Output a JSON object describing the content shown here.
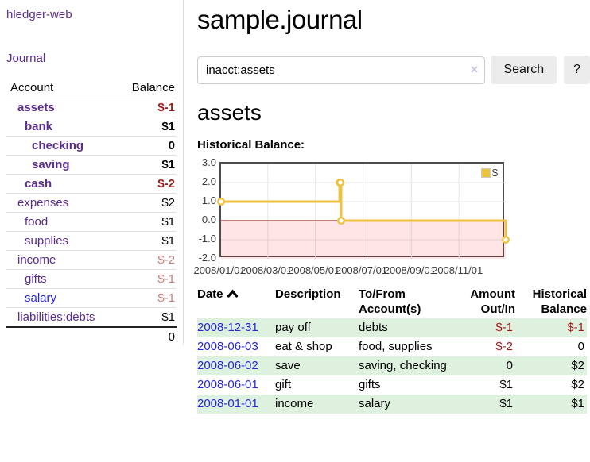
{
  "app": {
    "brand": "hledger-web"
  },
  "sidebar": {
    "journal_link": "Journal",
    "accounts_table": {
      "account_header": "Account",
      "balance_header": "Balance",
      "rows": [
        {
          "account": "assets",
          "balance": "$-1",
          "depth": 1,
          "bold": true,
          "amount_style": "neg-strong",
          "link_style": "purple"
        },
        {
          "account": "bank",
          "balance": "$1",
          "depth": 2,
          "bold": true,
          "amount_style": "normal",
          "link_style": "purple"
        },
        {
          "account": "checking",
          "balance": "0",
          "depth": 3,
          "bold": true,
          "amount_style": "normal",
          "link_style": "purple"
        },
        {
          "account": "saving",
          "balance": "$1",
          "depth": 3,
          "bold": true,
          "amount_style": "normal",
          "link_style": "purple"
        },
        {
          "account": "cash",
          "balance": "$-2",
          "depth": 2,
          "bold": true,
          "amount_style": "neg-strong",
          "link_style": "purple"
        },
        {
          "account": "expenses",
          "balance": "$2",
          "depth": 1,
          "bold": false,
          "amount_style": "normal",
          "link_style": "purple"
        },
        {
          "account": "food",
          "balance": "$1",
          "depth": 2,
          "bold": false,
          "amount_style": "normal",
          "link_style": "purple"
        },
        {
          "account": "supplies",
          "balance": "$1",
          "depth": 2,
          "bold": false,
          "amount_style": "normal",
          "link_style": "purple"
        },
        {
          "account": "income",
          "balance": "$-2",
          "depth": 1,
          "bold": false,
          "amount_style": "neg-muted",
          "link_style": "purple"
        },
        {
          "account": "gifts",
          "balance": "$-1",
          "depth": 2,
          "bold": false,
          "amount_style": "neg-muted",
          "link_style": "purple"
        },
        {
          "account": "salary",
          "balance": "$-1",
          "depth": 2,
          "bold": false,
          "amount_style": "neg-muted",
          "link_style": "blue"
        },
        {
          "account": "liabilities:debts",
          "balance": "$1",
          "depth": 1,
          "bold": false,
          "amount_style": "normal",
          "link_style": "purple"
        }
      ],
      "total": "0"
    }
  },
  "main": {
    "title": "sample.journal",
    "search": {
      "value": "inacct:assets",
      "clear_icon": "×",
      "search_button": "Search",
      "help_button": "?"
    },
    "account_heading": "assets",
    "chart_title": "Historical Balance:"
  },
  "chart_data": {
    "type": "line",
    "step": true,
    "title": "Historical Balance",
    "series": [
      {
        "name": "$",
        "color": "#edc240",
        "points": [
          [
            "2008-01-01",
            1
          ],
          [
            "2008-06-01",
            2
          ],
          [
            "2008-06-02",
            2
          ],
          [
            "2008-06-03",
            0
          ],
          [
            "2008-12-31",
            -1
          ]
        ]
      }
    ],
    "xlim": [
      "2008-01-01",
      "2008-12-31"
    ],
    "ylim": [
      -2,
      3
    ],
    "yticks": [
      {
        "value": 3,
        "label": "3.0"
      },
      {
        "value": 2,
        "label": "2.0"
      },
      {
        "value": 1,
        "label": "1.0"
      },
      {
        "value": 0,
        "label": "0.0"
      },
      {
        "value": -1,
        "label": "-1.0"
      },
      {
        "value": -2,
        "label": "-2.0"
      }
    ],
    "xticks": [
      {
        "value": "2008-01-01",
        "label": "2008/01/01"
      },
      {
        "value": "2008-03-01",
        "label": "2008/03/01"
      },
      {
        "value": "2008-05-01",
        "label": "2008/05/01"
      },
      {
        "value": "2008-07-01",
        "label": "2008/07/01"
      },
      {
        "value": "2008-09-01",
        "label": "2008/09/01"
      },
      {
        "value": "2008-11-01",
        "label": "2008/11/01"
      }
    ],
    "grid": true,
    "legend": {
      "label": "$",
      "position": "top-right",
      "swatch_color": "#edc240"
    },
    "negative_region": {
      "from": 0,
      "to": -2,
      "fill": "rgba(255,0,0,0.10)",
      "line_color": "#8b0000"
    },
    "gridline_color": "#e6e6e6",
    "marker": {
      "fill": "#ffffff",
      "stroke": "#edc240"
    }
  },
  "register": {
    "headers": {
      "date": "Date",
      "description": "Description",
      "accounts": "To/From\nAccount(s)",
      "amount": "Amount\nOut/In",
      "balance": "Historical\nBalance"
    },
    "rows": [
      {
        "date": "2008-12-31",
        "description": "pay off",
        "accounts": "debts",
        "amount": "$-1",
        "amount_negative": true,
        "balance": "$-1",
        "balance_negative": true
      },
      {
        "date": "2008-06-03",
        "description": "eat & shop",
        "accounts": "food, supplies",
        "amount": "$-2",
        "amount_negative": true,
        "balance": "0",
        "balance_negative": false
      },
      {
        "date": "2008-06-02",
        "description": "save",
        "accounts": "saving, checking",
        "amount": "0",
        "amount_negative": false,
        "balance": "$2",
        "balance_negative": false
      },
      {
        "date": "2008-06-01",
        "description": "gift",
        "accounts": "gifts",
        "amount": "$1",
        "amount_negative": false,
        "balance": "$2",
        "balance_negative": false
      },
      {
        "date": "2008-01-01",
        "description": "income",
        "accounts": "salary",
        "amount": "$1",
        "amount_negative": false,
        "balance": "$1",
        "balance_negative": false
      }
    ]
  },
  "colors": {
    "link_purple": "#5b2d90",
    "link_blue": "#2727d8",
    "neg_strong": "#9b1c1c",
    "neg_muted": "#c08080",
    "row_green": "#def0de",
    "chart_gold": "#edc240"
  }
}
